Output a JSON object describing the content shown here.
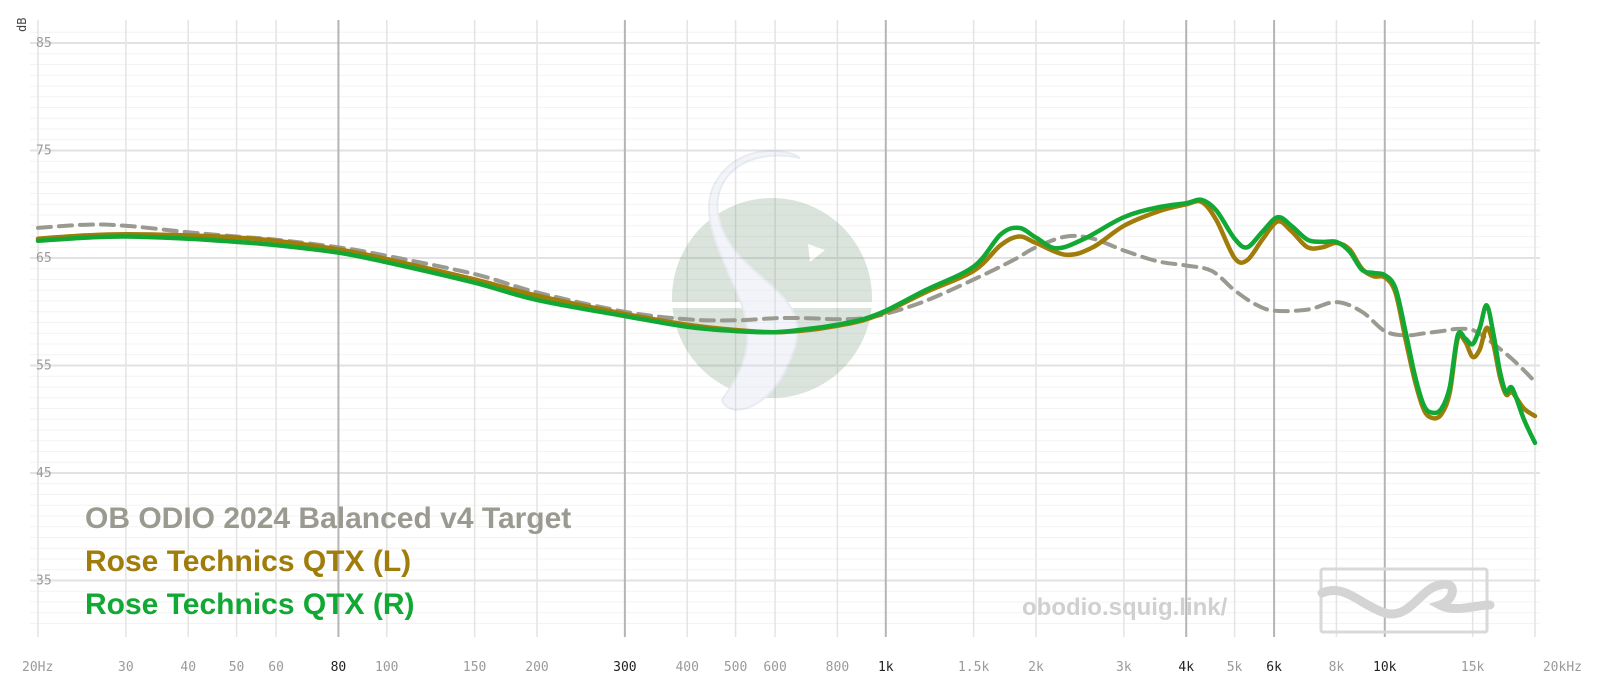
{
  "chart_data": {
    "type": "line",
    "ylabel": "dB",
    "ylim": [
      30,
      88
    ],
    "xscale": "log",
    "xlim": [
      20,
      20000
    ],
    "grid": true,
    "legend_position": "bottom-left",
    "y_ticks": [
      {
        "value": 85,
        "label": "85"
      },
      {
        "value": 75,
        "label": "75"
      },
      {
        "value": 65,
        "label": "65"
      },
      {
        "value": 55,
        "label": "55"
      },
      {
        "value": 45,
        "label": "45"
      },
      {
        "value": 35,
        "label": "35"
      }
    ],
    "x_ticks": [
      {
        "value": 20,
        "label": "20Hz",
        "major": false
      },
      {
        "value": 30,
        "label": "30",
        "major": false
      },
      {
        "value": 40,
        "label": "40",
        "major": false
      },
      {
        "value": 50,
        "label": "50",
        "major": false
      },
      {
        "value": 60,
        "label": "60",
        "major": false
      },
      {
        "value": 80,
        "label": "80",
        "major": true
      },
      {
        "value": 100,
        "label": "100",
        "major": false
      },
      {
        "value": 150,
        "label": "150",
        "major": false
      },
      {
        "value": 200,
        "label": "200",
        "major": false
      },
      {
        "value": 300,
        "label": "300",
        "major": true
      },
      {
        "value": 400,
        "label": "400",
        "major": false
      },
      {
        "value": 500,
        "label": "500",
        "major": false
      },
      {
        "value": 600,
        "label": "600",
        "major": false
      },
      {
        "value": 800,
        "label": "800",
        "major": false
      },
      {
        "value": 1000,
        "label": "1k",
        "major": true
      },
      {
        "value": 1500,
        "label": "1.5k",
        "major": false
      },
      {
        "value": 2000,
        "label": "2k",
        "major": false
      },
      {
        "value": 3000,
        "label": "3k",
        "major": false
      },
      {
        "value": 4000,
        "label": "4k",
        "major": true
      },
      {
        "value": 5000,
        "label": "5k",
        "major": false
      },
      {
        "value": 6000,
        "label": "6k",
        "major": true
      },
      {
        "value": 8000,
        "label": "8k",
        "major": false
      },
      {
        "value": 10000,
        "label": "10k",
        "major": true
      },
      {
        "value": 15000,
        "label": "15k",
        "major": false
      },
      {
        "value": 20000,
        "label": "20kHz",
        "major": false
      }
    ],
    "series": [
      {
        "name": "OB ODIO 2024 Balanced v4 Target",
        "color": "#9a9a90",
        "dashed": true,
        "points": [
          [
            20,
            67.8
          ],
          [
            25,
            68.1
          ],
          [
            30,
            68.0
          ],
          [
            40,
            67.4
          ],
          [
            50,
            67.0
          ],
          [
            60,
            66.7
          ],
          [
            80,
            66.0
          ],
          [
            100,
            65.2
          ],
          [
            150,
            63.5
          ],
          [
            200,
            61.8
          ],
          [
            300,
            60.0
          ],
          [
            400,
            59.3
          ],
          [
            500,
            59.2
          ],
          [
            600,
            59.4
          ],
          [
            700,
            59.4
          ],
          [
            800,
            59.3
          ],
          [
            900,
            59.4
          ],
          [
            1000,
            59.8
          ],
          [
            1200,
            61.0
          ],
          [
            1500,
            63.0
          ],
          [
            1800,
            64.8
          ],
          [
            2000,
            66.0
          ],
          [
            2300,
            67.0
          ],
          [
            2600,
            66.8
          ],
          [
            3000,
            65.7
          ],
          [
            3500,
            64.7
          ],
          [
            4000,
            64.3
          ],
          [
            4500,
            63.8
          ],
          [
            5000,
            62.0
          ],
          [
            5500,
            60.7
          ],
          [
            6000,
            60.1
          ],
          [
            7000,
            60.2
          ],
          [
            8000,
            60.9
          ],
          [
            9000,
            60.0
          ],
          [
            10000,
            58.2
          ],
          [
            11000,
            57.8
          ],
          [
            12000,
            58.0
          ],
          [
            13000,
            58.2
          ],
          [
            14000,
            58.4
          ],
          [
            15000,
            58.3
          ],
          [
            16000,
            57.5
          ],
          [
            18000,
            55.6
          ],
          [
            20000,
            53.5
          ]
        ]
      },
      {
        "name": "Rose Technics QTX (L)",
        "color": "#a07c0a",
        "dashed": false,
        "points": [
          [
            20,
            66.8
          ],
          [
            25,
            67.1
          ],
          [
            30,
            67.2
          ],
          [
            40,
            67.1
          ],
          [
            50,
            66.9
          ],
          [
            60,
            66.6
          ],
          [
            80,
            65.8
          ],
          [
            100,
            64.9
          ],
          [
            150,
            63.0
          ],
          [
            200,
            61.5
          ],
          [
            300,
            59.8
          ],
          [
            400,
            58.8
          ],
          [
            500,
            58.3
          ],
          [
            600,
            58.1
          ],
          [
            700,
            58.3
          ],
          [
            800,
            58.7
          ],
          [
            900,
            59.2
          ],
          [
            1000,
            60.0
          ],
          [
            1200,
            61.8
          ],
          [
            1500,
            63.8
          ],
          [
            1700,
            66.2
          ],
          [
            1850,
            67.0
          ],
          [
            2000,
            66.4
          ],
          [
            2300,
            65.3
          ],
          [
            2600,
            66.0
          ],
          [
            3000,
            68.0
          ],
          [
            3500,
            69.3
          ],
          [
            4000,
            70.0
          ],
          [
            4300,
            70.2
          ],
          [
            4600,
            68.5
          ],
          [
            5000,
            65.0
          ],
          [
            5300,
            64.8
          ],
          [
            5700,
            66.8
          ],
          [
            6100,
            68.4
          ],
          [
            6500,
            67.5
          ],
          [
            7000,
            66.0
          ],
          [
            7500,
            66.0
          ],
          [
            8000,
            66.4
          ],
          [
            8500,
            65.8
          ],
          [
            9000,
            64.0
          ],
          [
            9500,
            63.3
          ],
          [
            10000,
            63.2
          ],
          [
            10500,
            61.8
          ],
          [
            11000,
            57.5
          ],
          [
            11500,
            53.5
          ],
          [
            12000,
            50.8
          ],
          [
            12500,
            50.1
          ],
          [
            13000,
            50.5
          ],
          [
            13500,
            52.5
          ],
          [
            14000,
            57.5
          ],
          [
            14500,
            57.2
          ],
          [
            15000,
            55.8
          ],
          [
            15500,
            56.5
          ],
          [
            16000,
            58.5
          ],
          [
            16500,
            57.0
          ],
          [
            17000,
            54.0
          ],
          [
            17500,
            52.3
          ],
          [
            18000,
            52.5
          ],
          [
            19000,
            51.0
          ],
          [
            20000,
            50.3
          ]
        ]
      },
      {
        "name": "Rose Technics QTX (R)",
        "color": "#11a833",
        "dashed": false,
        "points": [
          [
            20,
            66.6
          ],
          [
            25,
            66.9
          ],
          [
            30,
            67.0
          ],
          [
            40,
            66.8
          ],
          [
            50,
            66.5
          ],
          [
            60,
            66.2
          ],
          [
            80,
            65.5
          ],
          [
            100,
            64.6
          ],
          [
            150,
            62.7
          ],
          [
            200,
            61.1
          ],
          [
            300,
            59.6
          ],
          [
            400,
            58.6
          ],
          [
            500,
            58.2
          ],
          [
            600,
            58.1
          ],
          [
            700,
            58.4
          ],
          [
            800,
            58.8
          ],
          [
            900,
            59.3
          ],
          [
            1000,
            60.1
          ],
          [
            1200,
            62.0
          ],
          [
            1500,
            64.2
          ],
          [
            1700,
            67.2
          ],
          [
            1850,
            67.8
          ],
          [
            2000,
            66.9
          ],
          [
            2200,
            65.9
          ],
          [
            2500,
            66.8
          ],
          [
            3000,
            68.8
          ],
          [
            3500,
            69.7
          ],
          [
            4000,
            70.1
          ],
          [
            4300,
            70.4
          ],
          [
            4600,
            69.4
          ],
          [
            5000,
            66.8
          ],
          [
            5300,
            66.0
          ],
          [
            5700,
            67.5
          ],
          [
            6100,
            68.8
          ],
          [
            6500,
            68.0
          ],
          [
            7000,
            66.7
          ],
          [
            7500,
            66.5
          ],
          [
            8000,
            66.5
          ],
          [
            8500,
            65.6
          ],
          [
            9000,
            63.9
          ],
          [
            9500,
            63.6
          ],
          [
            10000,
            63.4
          ],
          [
            10500,
            62.2
          ],
          [
            11000,
            58.2
          ],
          [
            11500,
            54.0
          ],
          [
            12000,
            51.2
          ],
          [
            12500,
            50.6
          ],
          [
            13000,
            51.0
          ],
          [
            13500,
            53.0
          ],
          [
            14000,
            57.8
          ],
          [
            14500,
            57.5
          ],
          [
            15000,
            57.0
          ],
          [
            15500,
            58.5
          ],
          [
            16000,
            60.6
          ],
          [
            16500,
            58.0
          ],
          [
            17000,
            54.5
          ],
          [
            17500,
            52.5
          ],
          [
            18000,
            52.9
          ],
          [
            19000,
            50.0
          ],
          [
            20000,
            47.8
          ]
        ]
      }
    ]
  },
  "watermark_url": "obodio.squig.link/"
}
